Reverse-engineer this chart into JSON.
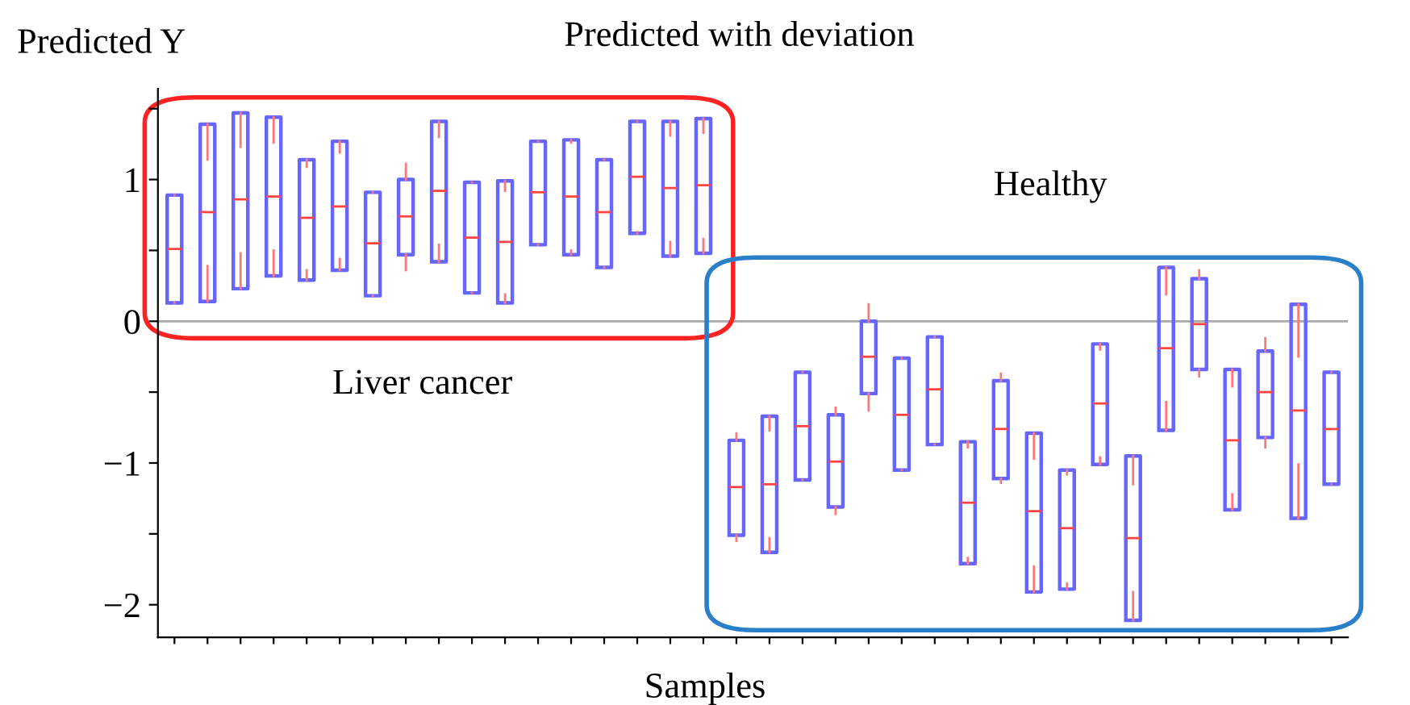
{
  "chart_data": {
    "type": "box",
    "title": "Predicted with deviation",
    "xlabel": "Samples",
    "ylabel": "Predicted Y",
    "categories": [
      null,
      null,
      null,
      null,
      null,
      null,
      null,
      null,
      null,
      null,
      null,
      null,
      null,
      null,
      null,
      null,
      null,
      null,
      null,
      null,
      null,
      null,
      null,
      null,
      null,
      null,
      null,
      null,
      null,
      null,
      null,
      null,
      null,
      null,
      null,
      null
    ],
    "boxes": [
      {
        "low": 0.13,
        "q1": 0.13,
        "median": 0.51,
        "q3": 0.89,
        "high": 0.89
      },
      {
        "low": 0.39,
        "q1": 0.14,
        "median": 0.77,
        "q3": 1.39,
        "high": 1.14
      },
      {
        "low": 0.48,
        "q1": 0.23,
        "median": 0.86,
        "q3": 1.47,
        "high": 1.23
      },
      {
        "low": 0.5,
        "q1": 0.32,
        "median": 0.88,
        "q3": 1.44,
        "high": 1.26
      },
      {
        "low": 0.36,
        "q1": 0.29,
        "median": 0.73,
        "q3": 1.14,
        "high": 1.09
      },
      {
        "low": 0.44,
        "q1": 0.36,
        "median": 0.81,
        "q3": 1.27,
        "high": 1.19
      },
      {
        "low": 0.18,
        "q1": 0.18,
        "median": 0.55,
        "q3": 0.91,
        "high": 0.91
      },
      {
        "low": 0.36,
        "q1": 0.47,
        "median": 0.74,
        "q3": 1.0,
        "high": 1.11
      },
      {
        "low": 0.54,
        "q1": 0.42,
        "median": 0.92,
        "q3": 1.41,
        "high": 1.3
      },
      {
        "low": 0.2,
        "q1": 0.2,
        "median": 0.59,
        "q3": 0.98,
        "high": 0.98
      },
      {
        "low": 0.19,
        "q1": 0.13,
        "median": 0.56,
        "q3": 0.99,
        "high": 0.92
      },
      {
        "low": 0.54,
        "q1": 0.54,
        "median": 0.91,
        "q3": 1.27,
        "high": 1.27
      },
      {
        "low": 0.5,
        "q1": 0.47,
        "median": 0.88,
        "q3": 1.28,
        "high": 1.26
      },
      {
        "low": 0.38,
        "q1": 0.38,
        "median": 0.77,
        "q3": 1.14,
        "high": 1.14
      },
      {
        "low": 0.63,
        "q1": 0.62,
        "median": 1.02,
        "q3": 1.41,
        "high": 1.41
      },
      {
        "low": 0.56,
        "q1": 0.46,
        "median": 0.94,
        "q3": 1.41,
        "high": 1.31
      },
      {
        "low": 0.58,
        "q1": 0.48,
        "median": 0.96,
        "q3": 1.43,
        "high": 1.33
      },
      {
        "low": -1.55,
        "q1": -1.51,
        "median": -1.17,
        "q3": -0.84,
        "high": -0.79
      },
      {
        "low": -1.53,
        "q1": -1.63,
        "median": -1.15,
        "q3": -0.67,
        "high": -0.77
      },
      {
        "low": -1.12,
        "q1": -1.12,
        "median": -0.74,
        "q3": -0.36,
        "high": -0.36
      },
      {
        "low": -1.36,
        "q1": -1.31,
        "median": -0.99,
        "q3": -0.66,
        "high": -0.61
      },
      {
        "low": -0.63,
        "q1": -0.51,
        "median": -0.25,
        "q3": 0.0,
        "high": 0.12
      },
      {
        "low": -1.05,
        "q1": -1.05,
        "median": -0.66,
        "q3": -0.26,
        "high": -0.26
      },
      {
        "low": -0.87,
        "q1": -0.87,
        "median": -0.48,
        "q3": -0.11,
        "high": -0.11
      },
      {
        "low": -1.67,
        "q1": -1.71,
        "median": -1.28,
        "q3": -0.85,
        "high": -0.89
      },
      {
        "low": -1.14,
        "q1": -1.11,
        "median": -0.76,
        "q3": -0.42,
        "high": -0.37
      },
      {
        "low": -1.73,
        "q1": -1.91,
        "median": -1.34,
        "q3": -0.79,
        "high": -0.97
      },
      {
        "low": -1.85,
        "q1": -1.89,
        "median": -1.46,
        "q3": -1.05,
        "high": -1.08
      },
      {
        "low": -0.96,
        "q1": -1.01,
        "median": -0.58,
        "q3": -0.16,
        "high": -0.2
      },
      {
        "low": -1.91,
        "q1": -2.11,
        "median": -1.53,
        "q3": -0.95,
        "high": -1.15
      },
      {
        "low": -0.57,
        "q1": -0.77,
        "median": -0.19,
        "q3": 0.38,
        "high": 0.19
      },
      {
        "low": -0.39,
        "q1": -0.34,
        "median": -0.02,
        "q3": 0.3,
        "high": 0.36
      },
      {
        "low": -1.22,
        "q1": -1.33,
        "median": -0.84,
        "q3": -0.34,
        "high": -0.46
      },
      {
        "low": -0.89,
        "q1": -0.82,
        "median": -0.5,
        "q3": -0.21,
        "high": -0.12
      },
      {
        "low": -1.01,
        "q1": -1.39,
        "median": -0.63,
        "q3": 0.12,
        "high": -0.25
      },
      {
        "low": -1.15,
        "q1": -1.15,
        "median": -0.76,
        "q3": -0.36,
        "high": -0.36
      }
    ],
    "color": "#6666ff",
    "ylim": [
      -2.23,
      1.64
    ],
    "yticks": [
      {
        "value": -2,
        "label": "−2"
      },
      {
        "value": -1.5,
        "label": null
      },
      {
        "value": -1,
        "label": "−1"
      },
      {
        "value": -0.5,
        "label": null
      },
      0,
      {
        "value": 0.5,
        "label": null
      },
      1,
      {
        "value": 1.5,
        "label": null
      }
    ],
    "ref_lines": [
      {
        "axis": "y",
        "value": 0,
        "label": null,
        "color": "#aaaaaa"
      }
    ],
    "annotations": [
      "Liver cancer",
      "Healthy"
    ],
    "grid": false,
    "legend": false
  }
}
